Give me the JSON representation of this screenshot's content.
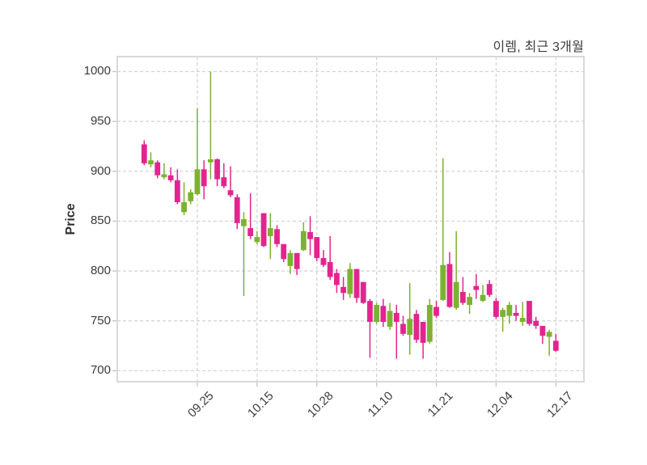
{
  "chart": {
    "title": "이렘, 최근 3개월",
    "ylabel": "Price"
  },
  "chart_data": {
    "type": "candlestick",
    "title": "이렘, 최근 3개월",
    "ylabel": "Price",
    "xlabel": "",
    "grid": "dashed-both-axes",
    "legend": "none",
    "up_color": "#7cb232",
    "down_color": "#e2258e",
    "ylim": [
      689,
      1015
    ],
    "yticks": [
      700,
      750,
      800,
      850,
      900,
      950,
      1000
    ],
    "xtick_labels": [
      "09.25",
      "10.15",
      "10.28",
      "11.10",
      "11.21",
      "12.04",
      "12.17"
    ],
    "xtick_indices": [
      8,
      17,
      26,
      35,
      44,
      53,
      62
    ],
    "ohlc_order": [
      "open",
      "high",
      "low",
      "close"
    ],
    "ohlc": [
      [
        927,
        931,
        906,
        908
      ],
      [
        907,
        919,
        904,
        911
      ],
      [
        909,
        911,
        893,
        896
      ],
      [
        894,
        908,
        892,
        897
      ],
      [
        896,
        904,
        889,
        891
      ],
      [
        891,
        902,
        867,
        869
      ],
      [
        859,
        889,
        856,
        869
      ],
      [
        870,
        882,
        867,
        879
      ],
      [
        877,
        963,
        876,
        902
      ],
      [
        902,
        911,
        872,
        885
      ],
      [
        909,
        1000,
        892,
        912
      ],
      [
        912,
        913,
        885,
        892
      ],
      [
        894,
        908,
        883,
        885
      ],
      [
        881,
        905,
        874,
        876
      ],
      [
        874,
        877,
        842,
        848
      ],
      [
        845,
        859,
        775,
        852
      ],
      [
        843,
        878,
        832,
        835
      ],
      [
        829,
        840,
        827,
        834
      ],
      [
        858,
        858,
        824,
        825
      ],
      [
        835,
        858,
        812,
        843
      ],
      [
        842,
        846,
        824,
        827
      ],
      [
        827,
        827,
        809,
        812
      ],
      [
        805,
        821,
        797,
        818
      ],
      [
        818,
        818,
        796,
        802
      ],
      [
        821,
        849,
        820,
        840
      ],
      [
        839,
        855,
        816,
        832
      ],
      [
        834,
        834,
        810,
        813
      ],
      [
        813,
        821,
        804,
        806
      ],
      [
        809,
        835,
        791,
        794
      ],
      [
        798,
        802,
        778,
        786
      ],
      [
        784,
        794,
        771,
        778
      ],
      [
        777,
        808,
        773,
        802
      ],
      [
        802,
        802,
        768,
        773
      ],
      [
        789,
        789,
        767,
        768
      ],
      [
        770,
        772,
        713,
        749
      ],
      [
        749,
        768,
        747,
        766
      ],
      [
        765,
        772,
        744,
        749
      ],
      [
        744,
        768,
        741,
        760
      ],
      [
        758,
        766,
        712,
        749
      ],
      [
        747,
        755,
        735,
        737
      ],
      [
        736,
        788,
        716,
        752
      ],
      [
        757,
        761,
        728,
        731
      ],
      [
        749,
        749,
        712,
        728
      ],
      [
        729,
        772,
        727,
        766
      ],
      [
        764,
        770,
        753,
        755
      ],
      [
        771,
        913,
        770,
        806
      ],
      [
        807,
        819,
        763,
        764
      ],
      [
        763,
        840,
        761,
        789
      ],
      [
        779,
        794,
        766,
        768
      ],
      [
        766,
        778,
        757,
        774
      ],
      [
        785,
        797,
        772,
        781
      ],
      [
        770,
        786,
        769,
        776
      ],
      [
        787,
        791,
        774,
        776
      ],
      [
        770,
        773,
        752,
        754
      ],
      [
        754,
        763,
        739,
        761
      ],
      [
        755,
        769,
        747,
        766
      ],
      [
        758,
        766,
        750,
        755
      ],
      [
        749,
        769,
        745,
        753
      ],
      [
        770,
        770,
        745,
        747
      ],
      [
        750,
        754,
        742,
        745
      ],
      [
        745,
        745,
        727,
        735
      ],
      [
        734,
        741,
        715,
        739
      ],
      [
        730,
        737,
        719,
        720
      ]
    ]
  }
}
